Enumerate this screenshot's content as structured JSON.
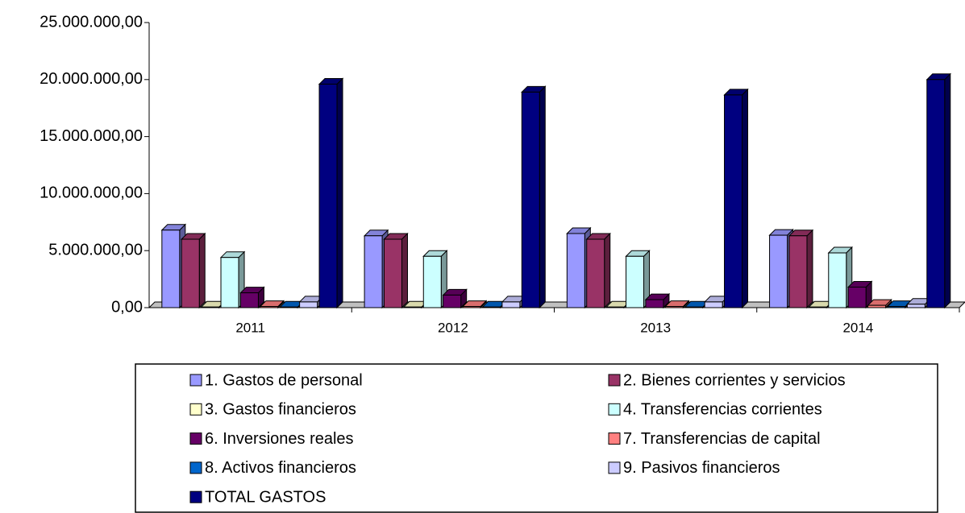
{
  "chart_data": {
    "type": "bar3d",
    "categories": [
      "2011",
      "2012",
      "2013",
      "2014"
    ],
    "series": [
      {
        "name": "1. Gastos de personal",
        "color": "#9999ff",
        "values": [
          6800000,
          6300000,
          6500000,
          6350000
        ]
      },
      {
        "name": "2. Bienes corrientes y servicios",
        "color": "#993366",
        "values": [
          6000000,
          6000000,
          6000000,
          6300000
        ]
      },
      {
        "name": "3. Gastos financieros",
        "color": "#ffffcc",
        "values": [
          50000,
          50000,
          50000,
          50000
        ]
      },
      {
        "name": "4. Transferencias corrientes",
        "color": "#ccffff",
        "values": [
          4400000,
          4500000,
          4500000,
          4800000
        ]
      },
      {
        "name": "6. Inversiones reales",
        "color": "#660066",
        "values": [
          1300000,
          1100000,
          700000,
          1800000
        ]
      },
      {
        "name": "7. Transferencias de capital",
        "color": "#ff8080",
        "values": [
          100000,
          100000,
          100000,
          200000
        ]
      },
      {
        "name": "8. Activos financieros",
        "color": "#0066cc",
        "values": [
          50000,
          50000,
          50000,
          100000
        ]
      },
      {
        "name": "9. Pasivos financieros",
        "color": "#ccccff",
        "values": [
          500000,
          500000,
          500000,
          300000
        ]
      },
      {
        "name": "TOTAL GASTOS",
        "color": "#000080",
        "values": [
          19600000,
          18900000,
          18650000,
          20000000
        ]
      }
    ],
    "ylim": [
      0,
      25000000
    ],
    "yticks": [
      {
        "value": 0,
        "label": "0,00"
      },
      {
        "value": 5000000,
        "label": "5.000.000,00"
      },
      {
        "value": 10000000,
        "label": "10.000.000,00"
      },
      {
        "value": 15000000,
        "label": "15.000.000,00"
      },
      {
        "value": 20000000,
        "label": "20.000.000,00"
      },
      {
        "value": 25000000,
        "label": "25.000.000,00"
      }
    ],
    "legend": "bottom"
  }
}
